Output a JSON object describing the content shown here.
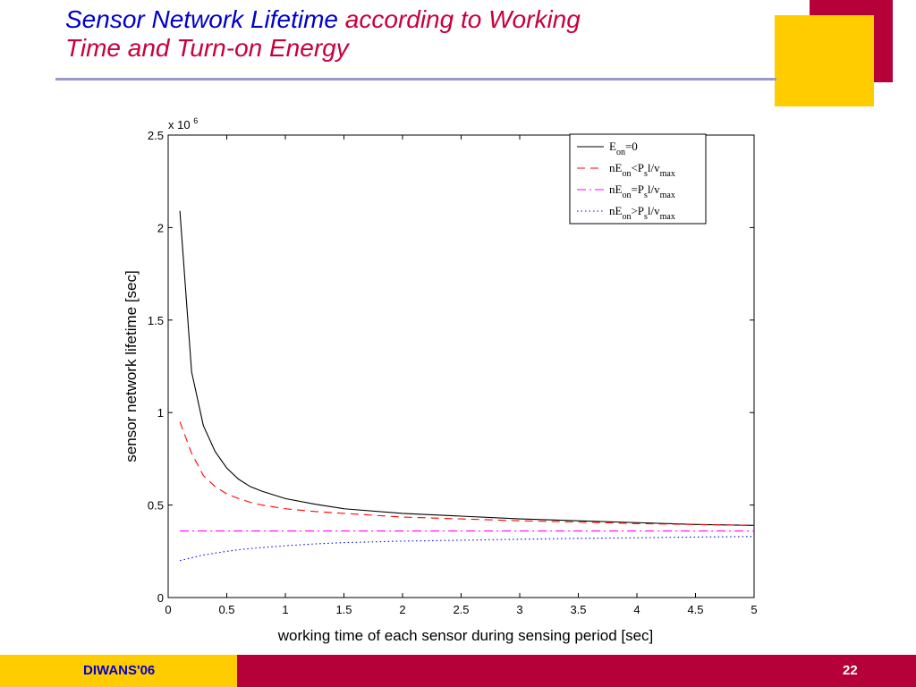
{
  "slide": {
    "title_part1": "Sensor Network Lifetime",
    "title_part2": "according to Working",
    "title_line2": "Time and Turn-on Energy",
    "footer_left": "DIWANS'06",
    "page_number": "22",
    "colors": {
      "accent_red": "#b5003a",
      "accent_yellow": "#ffcc00",
      "title_blue": "#0000cc",
      "title_red": "#c8003c"
    }
  },
  "chart_data": {
    "type": "line",
    "xlabel": "working time of each sensor during sensing period [sec]",
    "ylabel": "sensor network lifetime [sec]",
    "y_scale_label": "x 10",
    "y_scale_exponent": "6",
    "xlim": [
      0,
      5
    ],
    "ylim": [
      0,
      2.5
    ],
    "x_ticks": [
      "0",
      "0.5",
      "1",
      "1.5",
      "2",
      "2.5",
      "3",
      "3.5",
      "4",
      "4.5",
      "5"
    ],
    "y_ticks": [
      "0",
      "0.5",
      "1",
      "1.5",
      "2",
      "2.5"
    ],
    "grid": false,
    "legend_position": "top-right",
    "x": [
      0.1,
      0.2,
      0.3,
      0.4,
      0.5,
      0.6,
      0.7,
      0.8,
      0.9,
      1.0,
      1.25,
      1.5,
      2.0,
      2.5,
      3.0,
      3.5,
      4.0,
      4.5,
      5.0
    ],
    "series": [
      {
        "style": "solid",
        "color": "#000000",
        "legend": {
          "prefix": "E",
          "sub1": "on",
          "mid": "=0",
          "sub2": "",
          "mid2": "",
          "sub3": ""
        },
        "values": [
          2.09,
          1.22,
          0.93,
          0.79,
          0.7,
          0.64,
          0.6,
          0.575,
          0.555,
          0.535,
          0.505,
          0.48,
          0.455,
          0.44,
          0.425,
          0.415,
          0.405,
          0.395,
          0.39
        ]
      },
      {
        "style": "dashed",
        "color": "#ff0000",
        "legend": {
          "prefix": "nE",
          "sub1": "on",
          "mid": "<P",
          "sub2": "s",
          "mid2": "l/v",
          "sub3": "max"
        },
        "values": [
          0.95,
          0.78,
          0.66,
          0.6,
          0.56,
          0.535,
          0.515,
          0.5,
          0.49,
          0.48,
          0.465,
          0.455,
          0.435,
          0.425,
          0.415,
          0.408,
          0.4,
          0.395,
          0.39
        ]
      },
      {
        "style": "dashdot",
        "color": "#ff00ff",
        "legend": {
          "prefix": "nE",
          "sub1": "on",
          "mid": "=P",
          "sub2": "s",
          "mid2": "l/v",
          "sub3": "max"
        },
        "values": [
          0.36,
          0.36,
          0.36,
          0.36,
          0.36,
          0.36,
          0.36,
          0.36,
          0.36,
          0.36,
          0.36,
          0.36,
          0.36,
          0.36,
          0.36,
          0.36,
          0.36,
          0.36,
          0.36
        ]
      },
      {
        "style": "dotted",
        "color": "#0000ff",
        "legend": {
          "prefix": "nE",
          "sub1": "on",
          "mid": ">P",
          "sub2": "s",
          "mid2": "l/v",
          "sub3": "max"
        },
        "values": [
          0.2,
          0.215,
          0.23,
          0.24,
          0.25,
          0.258,
          0.265,
          0.27,
          0.275,
          0.28,
          0.29,
          0.297,
          0.305,
          0.31,
          0.315,
          0.32,
          0.323,
          0.327,
          0.33
        ]
      }
    ]
  }
}
